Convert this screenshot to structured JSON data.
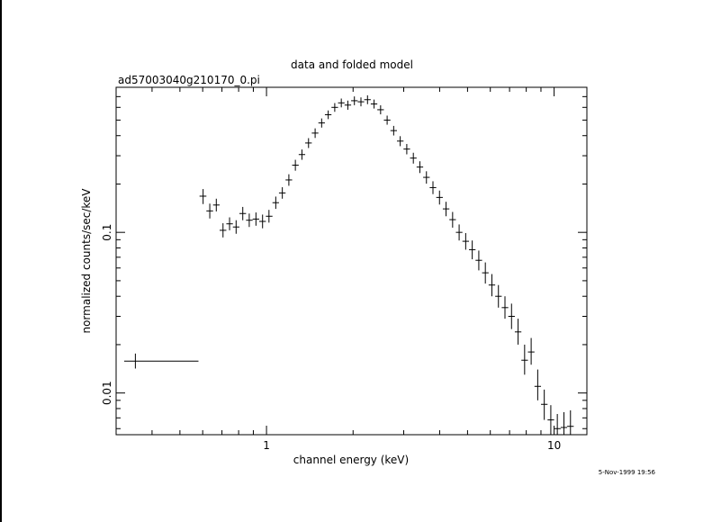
{
  "chart_data": {
    "type": "scatter",
    "title": "data and folded model",
    "subtitle": "ad57003040g210170_0.pi",
    "xlabel": "channel energy (keV)",
    "ylabel": "normalized counts/sec/keV",
    "xscale": "log",
    "yscale": "log",
    "xlim": [
      0.3,
      13
    ],
    "ylim": [
      0.0055,
      0.8
    ],
    "x_ticks": [
      {
        "value": 1,
        "label": "1"
      },
      {
        "value": 10,
        "label": "10"
      }
    ],
    "y_ticks": [
      {
        "value": 0.1,
        "label": "0.1"
      },
      {
        "value": 0.01,
        "label": "0.01"
      }
    ],
    "grid": false,
    "legend": "none",
    "timestamp": "5-Nov-1999 19:56",
    "colors": {
      "data": "#000000",
      "axes": "#000000",
      "background": "#ffffff"
    },
    "series": [
      {
        "marker": "crosshair-errorbars",
        "points": [
          {
            "x": 0.35,
            "xerr": [
              0.32,
              0.58
            ],
            "y": 0.0158,
            "yerr": [
              0.0142,
              0.0176
            ]
          },
          {
            "x": 0.602,
            "xerr": [
              0.585,
              0.618
            ],
            "y": 0.168,
            "yerr": [
              0.15,
              0.186
            ]
          },
          {
            "x": 0.635,
            "xerr": [
              0.618,
              0.652
            ],
            "y": 0.136,
            "yerr": [
              0.122,
              0.151
            ]
          },
          {
            "x": 0.669,
            "xerr": [
              0.652,
              0.687
            ],
            "y": 0.148,
            "yerr": [
              0.135,
              0.162
            ]
          },
          {
            "x": 0.706,
            "xerr": [
              0.687,
              0.725
            ],
            "y": 0.103,
            "yerr": [
              0.093,
              0.114
            ]
          },
          {
            "x": 0.744,
            "xerr": [
              0.725,
              0.764
            ],
            "y": 0.113,
            "yerr": [
              0.103,
              0.124
            ]
          },
          {
            "x": 0.784,
            "xerr": [
              0.764,
              0.805
            ],
            "y": 0.108,
            "yerr": [
              0.098,
              0.119
            ]
          },
          {
            "x": 0.827,
            "xerr": [
              0.805,
              0.849
            ],
            "y": 0.131,
            "yerr": [
              0.119,
              0.144
            ]
          },
          {
            "x": 0.871,
            "xerr": [
              0.849,
              0.895
            ],
            "y": 0.119,
            "yerr": [
              0.108,
              0.131
            ]
          },
          {
            "x": 0.919,
            "xerr": [
              0.895,
              0.943
            ],
            "y": 0.121,
            "yerr": [
              0.11,
              0.133
            ]
          },
          {
            "x": 0.969,
            "xerr": [
              0.943,
              0.995
            ],
            "y": 0.117,
            "yerr": [
              0.106,
              0.129
            ]
          },
          {
            "x": 1.02,
            "xerr": [
              0.995,
              1.049
            ],
            "y": 0.126,
            "yerr": [
              0.115,
              0.138
            ]
          },
          {
            "x": 1.077,
            "xerr": [
              1.049,
              1.105
            ],
            "y": 0.153,
            "yerr": [
              0.14,
              0.167
            ]
          },
          {
            "x": 1.135,
            "xerr": [
              1.105,
              1.165
            ],
            "y": 0.176,
            "yerr": [
              0.162,
              0.191
            ]
          },
          {
            "x": 1.196,
            "xerr": [
              1.165,
              1.228
            ],
            "y": 0.212,
            "yerr": [
              0.195,
              0.23
            ]
          },
          {
            "x": 1.26,
            "xerr": [
              1.228,
              1.294
            ],
            "y": 0.262,
            "yerr": [
              0.242,
              0.283
            ]
          },
          {
            "x": 1.328,
            "xerr": [
              1.294,
              1.363
            ],
            "y": 0.305,
            "yerr": [
              0.283,
              0.328
            ]
          },
          {
            "x": 1.4,
            "xerr": [
              1.363,
              1.437
            ],
            "y": 0.36,
            "yerr": [
              0.335,
              0.386
            ]
          },
          {
            "x": 1.476,
            "xerr": [
              1.437,
              1.515
            ],
            "y": 0.415,
            "yerr": [
              0.387,
              0.444
            ]
          },
          {
            "x": 1.555,
            "xerr": [
              1.515,
              1.596
            ],
            "y": 0.48,
            "yerr": [
              0.449,
              0.512
            ]
          },
          {
            "x": 1.639,
            "xerr": [
              1.596,
              1.682
            ],
            "y": 0.54,
            "yerr": [
              0.507,
              0.574
            ]
          },
          {
            "x": 1.727,
            "xerr": [
              1.682,
              1.773
            ],
            "y": 0.6,
            "yerr": [
              0.563,
              0.638
            ]
          },
          {
            "x": 1.82,
            "xerr": [
              1.773,
              1.868
            ],
            "y": 0.64,
            "yerr": [
              0.6,
              0.681
            ]
          },
          {
            "x": 1.918,
            "xerr": [
              1.868,
              1.969
            ],
            "y": 0.62,
            "yerr": [
              0.58,
              0.661
            ]
          },
          {
            "x": 2.021,
            "xerr": [
              1.969,
              2.075
            ],
            "y": 0.66,
            "yerr": [
              0.619,
              0.702
            ]
          },
          {
            "x": 2.13,
            "xerr": [
              2.075,
              2.186
            ],
            "y": 0.65,
            "yerr": [
              0.609,
              0.692
            ]
          },
          {
            "x": 2.245,
            "xerr": [
              2.186,
              2.304
            ],
            "y": 0.67,
            "yerr": [
              0.628,
              0.713
            ]
          },
          {
            "x": 2.366,
            "xerr": [
              2.304,
              2.428
            ],
            "y": 0.63,
            "yerr": [
              0.59,
              0.671
            ]
          },
          {
            "x": 2.493,
            "xerr": [
              2.428,
              2.559
            ],
            "y": 0.58,
            "yerr": [
              0.543,
              0.618
            ]
          },
          {
            "x": 2.627,
            "xerr": [
              2.559,
              2.697
            ],
            "y": 0.5,
            "yerr": [
              0.468,
              0.533
            ]
          },
          {
            "x": 2.768,
            "xerr": [
              2.697,
              2.842
            ],
            "y": 0.43,
            "yerr": [
              0.401,
              0.46
            ]
          },
          {
            "x": 2.917,
            "xerr": [
              2.842,
              2.995
            ],
            "y": 0.37,
            "yerr": [
              0.344,
              0.397
            ]
          },
          {
            "x": 3.074,
            "xerr": [
              2.995,
              3.156
            ],
            "y": 0.33,
            "yerr": [
              0.306,
              0.355
            ]
          },
          {
            "x": 3.24,
            "xerr": [
              3.156,
              3.326
            ],
            "y": 0.29,
            "yerr": [
              0.268,
              0.313
            ]
          },
          {
            "x": 3.414,
            "xerr": [
              3.326,
              3.505
            ],
            "y": 0.255,
            "yerr": [
              0.234,
              0.277
            ]
          },
          {
            "x": 3.598,
            "xerr": [
              3.505,
              3.694
            ],
            "y": 0.22,
            "yerr": [
              0.201,
              0.24
            ]
          },
          {
            "x": 3.791,
            "xerr": [
              3.694,
              3.892
            ],
            "y": 0.19,
            "yerr": [
              0.173,
              0.208
            ]
          },
          {
            "x": 3.995,
            "xerr": [
              3.892,
              4.102
            ],
            "y": 0.165,
            "yerr": [
              0.149,
              0.182
            ]
          },
          {
            "x": 4.21,
            "xerr": [
              4.102,
              4.323
            ],
            "y": 0.14,
            "yerr": [
              0.126,
              0.155
            ]
          },
          {
            "x": 4.437,
            "xerr": [
              4.323,
              4.555
            ],
            "y": 0.12,
            "yerr": [
              0.107,
              0.134
            ]
          },
          {
            "x": 4.675,
            "xerr": [
              4.555,
              4.8
            ],
            "y": 0.1,
            "yerr": [
              0.089,
              0.112
            ]
          },
          {
            "x": 4.927,
            "xerr": [
              4.8,
              5.059
            ],
            "y": 0.088,
            "yerr": [
              0.078,
              0.099
            ]
          },
          {
            "x": 5.192,
            "xerr": [
              5.059,
              5.331
            ],
            "y": 0.078,
            "yerr": [
              0.068,
              0.089
            ]
          },
          {
            "x": 5.472,
            "xerr": [
              5.331,
              5.618
            ],
            "y": 0.067,
            "yerr": [
              0.058,
              0.077
            ]
          },
          {
            "x": 5.766,
            "xerr": [
              5.618,
              5.92
            ],
            "y": 0.056,
            "yerr": [
              0.048,
              0.065
            ]
          },
          {
            "x": 6.076,
            "xerr": [
              5.92,
              6.239
            ],
            "y": 0.047,
            "yerr": [
              0.04,
              0.055
            ]
          },
          {
            "x": 6.403,
            "xerr": [
              6.239,
              6.574
            ],
            "y": 0.04,
            "yerr": [
              0.034,
              0.047
            ]
          },
          {
            "x": 6.748,
            "xerr": [
              6.574,
              6.928
            ],
            "y": 0.034,
            "yerr": [
              0.029,
              0.04
            ]
          },
          {
            "x": 7.111,
            "xerr": [
              6.928,
              7.301
            ],
            "y": 0.03,
            "yerr": [
              0.025,
              0.036
            ]
          },
          {
            "x": 7.494,
            "xerr": [
              7.301,
              7.694
            ],
            "y": 0.024,
            "yerr": [
              0.02,
              0.029
            ]
          },
          {
            "x": 7.897,
            "xerr": [
              7.694,
              8.108
            ],
            "y": 0.016,
            "yerr": [
              0.013,
              0.02
            ]
          },
          {
            "x": 8.322,
            "xerr": [
              8.108,
              8.545
            ],
            "y": 0.018,
            "yerr": [
              0.015,
              0.022
            ]
          },
          {
            "x": 8.77,
            "xerr": [
              8.545,
              9.004
            ],
            "y": 0.011,
            "yerr": [
              0.009,
              0.014
            ]
          },
          {
            "x": 9.242,
            "xerr": [
              9.004,
              9.489
            ],
            "y": 0.0085,
            "yerr": [
              0.0068,
              0.0105
            ]
          },
          {
            "x": 9.739,
            "xerr": [
              9.489,
              10.0
            ],
            "y": 0.0068,
            "yerr": [
              0.0055,
              0.0084
            ]
          },
          {
            "x": 10.26,
            "xerr": [
              10.0,
              10.54
            ],
            "y": 0.006,
            "yerr": [
              0.0055,
              0.0074
            ]
          },
          {
            "x": 10.82,
            "xerr": [
              10.54,
              11.1
            ],
            "y": 0.0061,
            "yerr": [
              0.0055,
              0.0076
            ]
          },
          {
            "x": 11.4,
            "xerr": [
              11.1,
              11.7
            ],
            "y": 0.0062,
            "yerr": [
              0.0055,
              0.0078
            ]
          }
        ]
      }
    ]
  }
}
